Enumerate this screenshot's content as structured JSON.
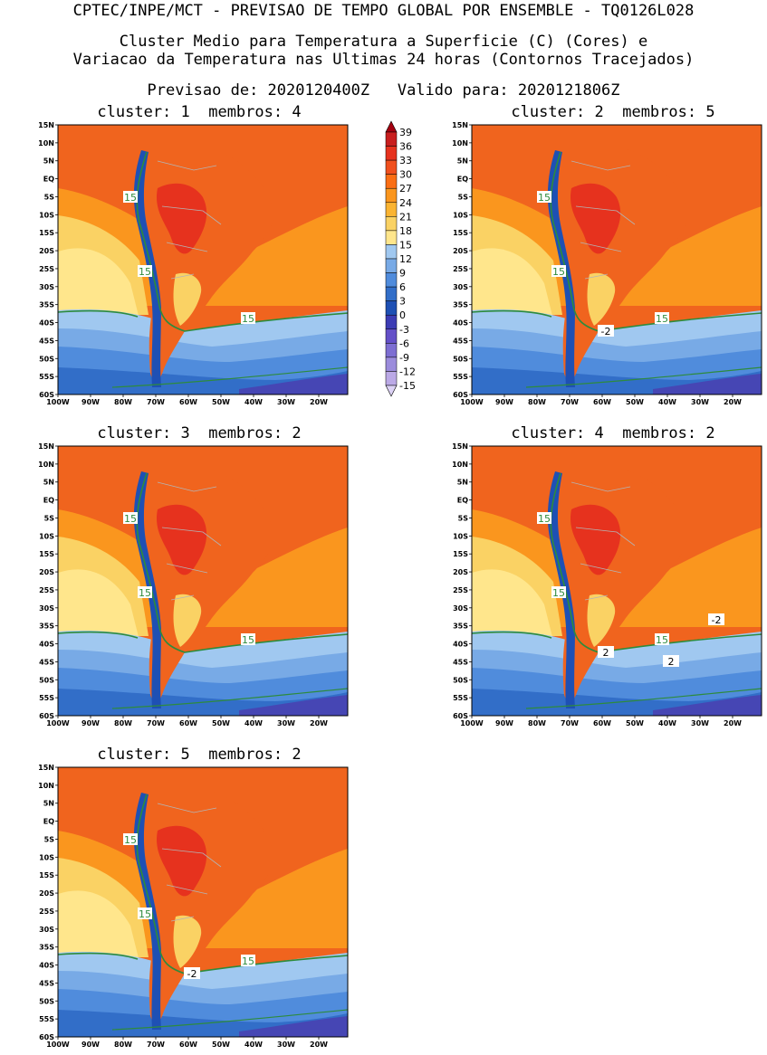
{
  "header": {
    "line1": "CPTEC/INPE/MCT - PREVISAO DE TEMPO GLOBAL POR ENSEMBLE - TQ0126L028",
    "line2": "Cluster Medio para Temperatura a Superficie (C) (Cores) e",
    "line3": "Variacao da Temperatura nas Ultimas 24 horas (Contornos Tracejados)",
    "line4": "Previsao de: 2020120400Z   Valido para: 2020121806Z"
  },
  "panels": [
    {
      "title": "cluster: 1  membros: 4",
      "labels": [
        "15",
        "15",
        "15"
      ],
      "neg": []
    },
    {
      "title": "cluster: 2  membros: 5",
      "labels": [
        "15",
        "15",
        "15"
      ],
      "neg": [
        "-2"
      ]
    },
    {
      "title": "cluster: 3  membros: 2",
      "labels": [
        "15",
        "15",
        "15"
      ],
      "neg": []
    },
    {
      "title": "cluster: 4  membros: 2",
      "labels": [
        "15",
        "15",
        "15"
      ],
      "neg": [
        "2",
        "-2",
        "2"
      ]
    },
    {
      "title": "cluster: 5  membros: 2",
      "labels": [
        "15",
        "15",
        "15"
      ],
      "neg": [
        "-2"
      ]
    }
  ],
  "lat_ticks": [
    "15N",
    "10N",
    "5N",
    "EQ",
    "5S",
    "10S",
    "15S",
    "20S",
    "25S",
    "30S",
    "35S",
    "40S",
    "45S",
    "50S",
    "55S",
    "60S"
  ],
  "lon_ticks": [
    "100W",
    "90W",
    "80W",
    "70W",
    "60W",
    "50W",
    "40W",
    "30W",
    "20W"
  ],
  "colorbar": {
    "levels": [
      "39",
      "36",
      "33",
      "30",
      "27",
      "24",
      "21",
      "18",
      "15",
      "12",
      "9",
      "6",
      "3",
      "0",
      "-3",
      "-6",
      "-9",
      "-12",
      "-15"
    ],
    "colors": [
      "#a40010",
      "#c81e1e",
      "#e6321e",
      "#f0501e",
      "#fa6e14",
      "#fa961e",
      "#fab432",
      "#fad264",
      "#ffe68c",
      "#a0c8f0",
      "#78aae6",
      "#508cdc",
      "#326ec8",
      "#1e50b4",
      "#3c3cb4",
      "#6450c8",
      "#7d6ed2",
      "#9b8cdc",
      "#bba9e6",
      "#dcd2f5"
    ]
  },
  "map_colors": {
    "ocean_warm": "#f0641e",
    "ocean_mid": "#fa961e",
    "ocean_cool": "#fad264",
    "ocean_pale": "#ffe68c",
    "south_1": "#a0c8f0",
    "south_2": "#78aae6",
    "south_3": "#508cdc",
    "south_4": "#326ec8",
    "south_5": "#4646b4",
    "andes": "#1e50b4",
    "contour15": "#2e8b3c",
    "border": "#b4b4b4"
  }
}
